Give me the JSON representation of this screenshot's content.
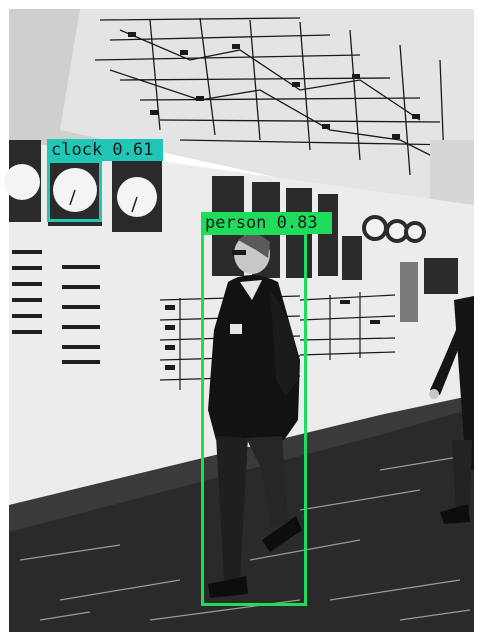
{
  "image": {
    "description_icon": "photo-icon",
    "palette": {
      "wall": "#ececec",
      "floor": "#2a2a2a",
      "board": "#dcdcdc",
      "ink": "#141414"
    }
  },
  "detections": [
    {
      "label": "clock",
      "score": "0.61",
      "text": "clock 0.61",
      "color": "#1fc7b4"
    },
    {
      "label": "person",
      "score": "0.83",
      "text": "person 0.83",
      "color": "#1fdc5c"
    }
  ]
}
